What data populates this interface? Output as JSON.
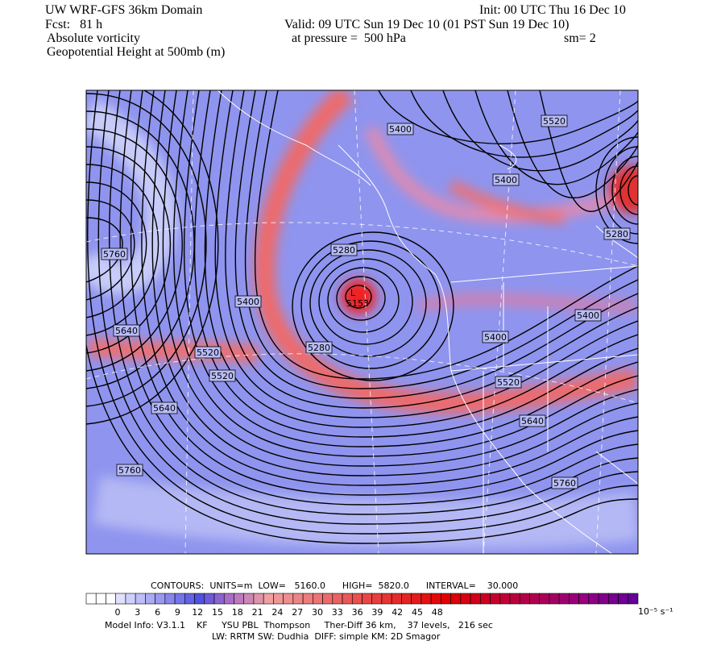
{
  "header": {
    "title": "UW WRF-GFS 36km Domain",
    "init": "Init: 00 UTC Thu 16 Dec 10",
    "forecast": "Fcst:   81 h",
    "valid": "Valid: 09 UTC Sun 19 Dec 10 (01 PST Sun 19 Dec 10)",
    "field": "Absolute vorticity",
    "pressure": "at pressure =  500 hPa",
    "smoothing": "sm= 2",
    "contour_field": "Geopotential Height at 500mb (m)"
  },
  "map": {
    "low_symbol": "L",
    "low_value": "5153",
    "contour_labels": [
      "5400",
      "5520",
      "5400",
      "5280",
      "5760",
      "5280",
      "5400",
      "5640",
      "5400",
      "5400",
      "5280",
      "5520",
      "5520",
      "5520",
      "5640",
      "5640",
      "5760",
      "5760"
    ]
  },
  "colorbar": {
    "contour_info": "CONTOURS:  UNITS=m  LOW=   5160.0      HIGH=  5820.0      INTERVAL=    30.000",
    "labels": [
      "0",
      "3",
      "6",
      "9",
      "12",
      "15",
      "18",
      "21",
      "24",
      "27",
      "30",
      "33",
      "36",
      "39",
      "42",
      "45",
      "48"
    ],
    "units": "10⁻⁵ s⁻¹"
  },
  "footer": {
    "model_info": "Model Info: V3.1.1    KF     YSU PBL  Thompson     Ther-Diff 36 km,    37 levels,   216 sec",
    "physics": "LW: RRTM SW: Dudhia  DIFF: simple KM: 2D Smagor"
  }
}
